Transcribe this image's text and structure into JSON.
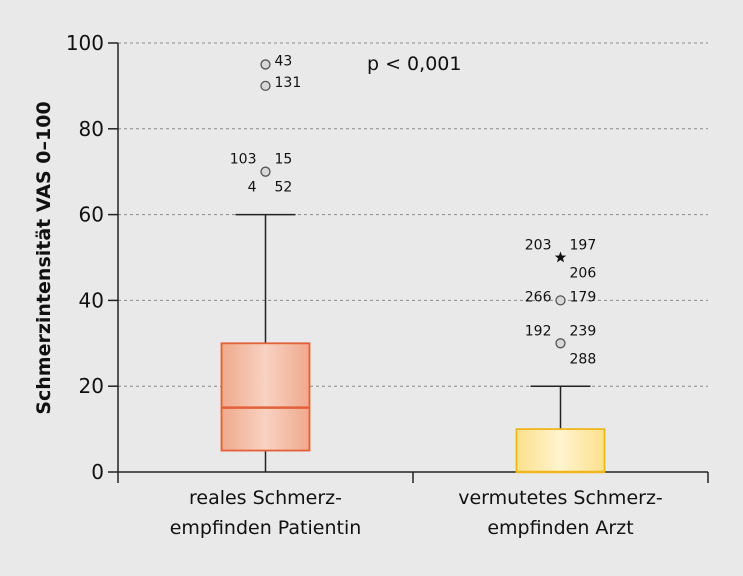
{
  "chart_data": {
    "type": "box",
    "ylabel": "Schmerzintensität VAS 0–100",
    "ylim": [
      0,
      100
    ],
    "yticks": [
      0,
      20,
      40,
      60,
      80,
      100
    ],
    "grid": true,
    "annotation": "p < 0,001",
    "categories": [
      [
        "reales Schmerz-",
        "empfinden Patientin"
      ],
      [
        "vermutetes Schmerz-",
        "empfinden Arzt"
      ]
    ],
    "series": [
      {
        "whisker_low": 0,
        "q1": 5,
        "median": 15,
        "q3": 30,
        "whisker_high": 60,
        "fill": "#f2b8a0",
        "stroke": "#e2603a",
        "outliers": [
          {
            "value": 95,
            "labels_right": [
              "43"
            ],
            "labels_left": []
          },
          {
            "value": 90,
            "labels_right": [
              "131"
            ],
            "labels_left": []
          },
          {
            "value": 70,
            "labels_right": [
              "15",
              "52"
            ],
            "labels_left": [
              "103",
              "4"
            ]
          }
        ],
        "extremes": []
      },
      {
        "whisker_low": 0,
        "q1": 0,
        "median": 0,
        "q3": 10,
        "whisker_high": 20,
        "fill": "#fde9a6",
        "stroke": "#f0b61e",
        "outliers": [
          {
            "value": 40,
            "labels_right": [
              "179"
            ],
            "labels_left": [
              "266"
            ]
          },
          {
            "value": 30,
            "labels_right": [
              "239",
              "288"
            ],
            "labels_left": [
              "192"
            ]
          }
        ],
        "extremes": [
          {
            "value": 50,
            "labels_right": [
              "197",
              "206"
            ],
            "labels_left": [
              "203"
            ]
          }
        ]
      }
    ]
  }
}
